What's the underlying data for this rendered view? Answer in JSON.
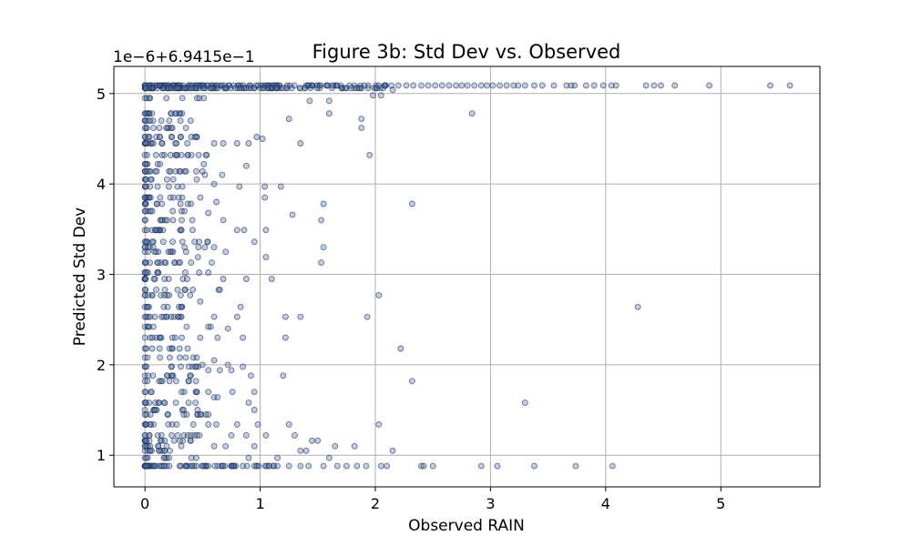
{
  "chart_data": {
    "type": "scatter",
    "title": "Figure 3b: Std Dev vs. Observed",
    "xlabel": "Observed RAIN",
    "ylabel": "Predicted Std Dev",
    "y_offset_label": "1e−6+6.9415e−1",
    "xlim": [
      -0.27,
      5.86
    ],
    "ylim": [
      0.65,
      5.3
    ],
    "x_ticks": [
      0,
      1,
      2,
      3,
      4,
      5
    ],
    "x_tick_labels": [
      "0",
      "1",
      "2",
      "3",
      "4",
      "5"
    ],
    "y_ticks": [
      1,
      2,
      3,
      4,
      5
    ],
    "y_tick_labels": [
      "1",
      "2",
      "3",
      "4",
      "5"
    ],
    "grid": true,
    "marker_fill": "#4a6fb0",
    "marker_edge": "#1a2a4a",
    "marker_alpha": 0.35,
    "y_levels": [
      5.09,
      5.06,
      4.95,
      4.78,
      4.7,
      4.62,
      4.52,
      4.45,
      4.32,
      4.22,
      4.14,
      4.05,
      3.97,
      3.85,
      3.78,
      3.7,
      3.6,
      3.49,
      3.36,
      3.3,
      3.25,
      3.13,
      3.02,
      2.95,
      2.83,
      2.77,
      2.64,
      2.53,
      2.42,
      2.3,
      2.18,
      2.08,
      1.98,
      1.88,
      1.82,
      1.7,
      1.58,
      1.5,
      1.45,
      1.34,
      1.22,
      1.16,
      1.1,
      1.05,
      0.97,
      0.88
    ],
    "points": [
      [
        5.6,
        5.09
      ],
      [
        5.43,
        5.09
      ],
      [
        4.9,
        5.09
      ],
      [
        4.6,
        5.09
      ],
      [
        4.48,
        5.09
      ],
      [
        4.42,
        5.09
      ],
      [
        4.35,
        5.09
      ],
      [
        4.09,
        5.09
      ],
      [
        4.05,
        5.09
      ],
      [
        3.98,
        5.09
      ],
      [
        3.9,
        5.09
      ],
      [
        3.83,
        5.09
      ],
      [
        3.73,
        5.09
      ],
      [
        3.7,
        5.09
      ],
      [
        3.66,
        5.09
      ],
      [
        3.55,
        5.09
      ],
      [
        3.45,
        5.09
      ],
      [
        3.38,
        5.09
      ],
      [
        3.3,
        5.09
      ],
      [
        3.24,
        5.09
      ],
      [
        3.2,
        5.09
      ],
      [
        3.14,
        5.09
      ],
      [
        3.08,
        5.09
      ],
      [
        3.02,
        5.09
      ],
      [
        2.97,
        5.09
      ],
      [
        2.92,
        5.09
      ],
      [
        2.86,
        5.09
      ],
      [
        2.8,
        5.09
      ],
      [
        2.75,
        5.09
      ],
      [
        2.7,
        5.09
      ],
      [
        2.64,
        5.09
      ],
      [
        2.58,
        5.09
      ],
      [
        2.52,
        5.09
      ],
      [
        2.46,
        5.09
      ],
      [
        2.4,
        5.09
      ],
      [
        2.33,
        5.09
      ],
      [
        2.27,
        5.09
      ],
      [
        2.2,
        5.09
      ],
      [
        2.14,
        5.09
      ],
      [
        2.08,
        5.09
      ],
      [
        2.03,
        5.09
      ],
      [
        2.15,
        5.04
      ],
      [
        2.05,
        4.98
      ],
      [
        1.98,
        4.98
      ],
      [
        1.6,
        4.92
      ],
      [
        1.43,
        4.92
      ],
      [
        1.6,
        4.78
      ],
      [
        2.84,
        4.78
      ],
      [
        1.88,
        4.72
      ],
      [
        1.88,
        4.62
      ],
      [
        1.25,
        4.72
      ],
      [
        0.97,
        4.52
      ],
      [
        1.02,
        4.5
      ],
      [
        1.35,
        4.45
      ],
      [
        1.95,
        4.32
      ],
      [
        0.68,
        4.45
      ],
      [
        0.8,
        4.45
      ],
      [
        0.9,
        4.45
      ],
      [
        0.45,
        4.52
      ],
      [
        0.6,
        4.45
      ],
      [
        0.5,
        4.14
      ],
      [
        0.52,
        4.1
      ],
      [
        0.67,
        4.1
      ],
      [
        0.45,
        4.05
      ],
      [
        0.88,
        4.2
      ],
      [
        0.6,
        4.0
      ],
      [
        0.82,
        3.97
      ],
      [
        1.04,
        3.97
      ],
      [
        1.18,
        3.97
      ],
      [
        1.04,
        3.85
      ],
      [
        0.48,
        3.85
      ],
      [
        0.62,
        3.8
      ],
      [
        1.55,
        3.78
      ],
      [
        2.32,
        3.78
      ],
      [
        1.28,
        3.66
      ],
      [
        1.53,
        3.6
      ],
      [
        0.68,
        3.6
      ],
      [
        0.55,
        3.68
      ],
      [
        0.8,
        3.49
      ],
      [
        0.86,
        3.49
      ],
      [
        1.05,
        3.49
      ],
      [
        0.47,
        3.36
      ],
      [
        0.6,
        3.3
      ],
      [
        0.95,
        3.36
      ],
      [
        1.55,
        3.3
      ],
      [
        0.7,
        3.25
      ],
      [
        1.05,
        3.19
      ],
      [
        1.53,
        3.13
      ],
      [
        0.46,
        3.19
      ],
      [
        0.58,
        3.13
      ],
      [
        0.35,
        3.02
      ],
      [
        0.47,
        3.02
      ],
      [
        0.55,
        3.02
      ],
      [
        0.68,
        2.95
      ],
      [
        0.88,
        2.95
      ],
      [
        1.1,
        2.95
      ],
      [
        0.64,
        2.83
      ],
      [
        0.65,
        2.83
      ],
      [
        0.48,
        2.7
      ],
      [
        0.83,
        2.64
      ],
      [
        2.03,
        2.77
      ],
      [
        4.28,
        2.64
      ],
      [
        0.6,
        2.53
      ],
      [
        0.8,
        2.53
      ],
      [
        1.22,
        2.53
      ],
      [
        1.35,
        2.53
      ],
      [
        1.93,
        2.53
      ],
      [
        0.55,
        2.42
      ],
      [
        0.72,
        2.4
      ],
      [
        0.48,
        2.3
      ],
      [
        0.63,
        2.3
      ],
      [
        0.85,
        2.3
      ],
      [
        1.22,
        2.3
      ],
      [
        2.22,
        2.18
      ],
      [
        0.45,
        2.08
      ],
      [
        0.5,
        2.0
      ],
      [
        0.6,
        2.05
      ],
      [
        0.72,
        2.0
      ],
      [
        0.75,
        1.94
      ],
      [
        0.85,
        1.98
      ],
      [
        0.92,
        1.88
      ],
      [
        1.2,
        1.88
      ],
      [
        2.32,
        1.82
      ],
      [
        0.55,
        1.94
      ],
      [
        0.65,
        1.94
      ],
      [
        0.45,
        1.7
      ],
      [
        0.55,
        1.7
      ],
      [
        0.76,
        1.7
      ],
      [
        0.95,
        1.7
      ],
      [
        0.9,
        1.58
      ],
      [
        0.6,
        1.64
      ],
      [
        0.63,
        1.64
      ],
      [
        3.3,
        1.58
      ],
      [
        0.95,
        1.5
      ],
      [
        0.48,
        1.45
      ],
      [
        0.55,
        1.45
      ],
      [
        0.42,
        1.34
      ],
      [
        0.55,
        1.34
      ],
      [
        0.62,
        1.34
      ],
      [
        0.8,
        1.34
      ],
      [
        0.98,
        1.34
      ],
      [
        1.25,
        1.34
      ],
      [
        2.03,
        1.34
      ],
      [
        0.75,
        1.22
      ],
      [
        0.88,
        1.22
      ],
      [
        1.05,
        1.22
      ],
      [
        1.3,
        1.22
      ],
      [
        1.45,
        1.16
      ],
      [
        1.5,
        1.16
      ],
      [
        0.6,
        1.1
      ],
      [
        0.7,
        1.1
      ],
      [
        0.95,
        1.1
      ],
      [
        1.65,
        1.1
      ],
      [
        1.82,
        1.1
      ],
      [
        2.15,
        1.05
      ],
      [
        1.4,
        1.05
      ],
      [
        1.35,
        1.05
      ],
      [
        1.15,
        0.97
      ],
      [
        1.6,
        0.97
      ],
      [
        0.9,
        0.97
      ],
      [
        0.35,
        0.88
      ],
      [
        0.55,
        0.88
      ],
      [
        0.75,
        0.88
      ],
      [
        0.95,
        0.88
      ],
      [
        1.15,
        0.88
      ],
      [
        1.25,
        0.88
      ],
      [
        1.35,
        0.88
      ],
      [
        1.42,
        0.88
      ],
      [
        1.55,
        0.88
      ],
      [
        1.67,
        0.88
      ],
      [
        1.75,
        0.88
      ],
      [
        1.84,
        0.88
      ],
      [
        1.92,
        0.88
      ],
      [
        2.05,
        0.88
      ],
      [
        2.1,
        0.88
      ],
      [
        2.4,
        0.88
      ],
      [
        2.42,
        0.88
      ],
      [
        2.5,
        0.88
      ],
      [
        2.92,
        0.88
      ],
      [
        3.06,
        0.88
      ],
      [
        3.38,
        0.88
      ],
      [
        3.74,
        0.88
      ],
      [
        4.06,
        0.88
      ]
    ]
  }
}
